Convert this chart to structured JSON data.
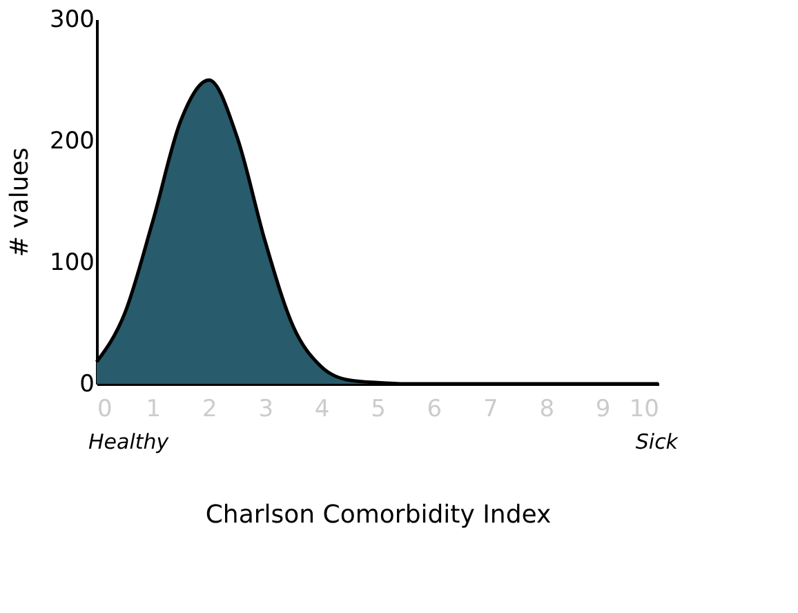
{
  "chart_data": {
    "type": "area",
    "xlabel": "Charlson Comorbidity Index",
    "ylabel": "# values",
    "x": [
      0,
      0.5,
      1,
      1.5,
      2,
      2.5,
      3,
      3.5,
      4,
      4.5,
      5,
      5.5,
      6,
      7,
      8,
      9,
      10
    ],
    "series": [
      {
        "color": "#285b6b",
        "values": [
          18,
          58,
          134,
          217,
          250,
          203,
          117,
          47,
          14,
          3,
          1,
          0,
          0,
          0,
          0,
          0,
          0
        ]
      }
    ],
    "xlim": [
      0,
      10
    ],
    "xticks": [
      0,
      1,
      2,
      3,
      4,
      5,
      6,
      7,
      8,
      9,
      10
    ],
    "ylim": [
      0,
      300
    ],
    "yticks": [
      0,
      100,
      200,
      300
    ],
    "grid": false,
    "annotations": [
      "Healthy",
      "Sick"
    ]
  }
}
